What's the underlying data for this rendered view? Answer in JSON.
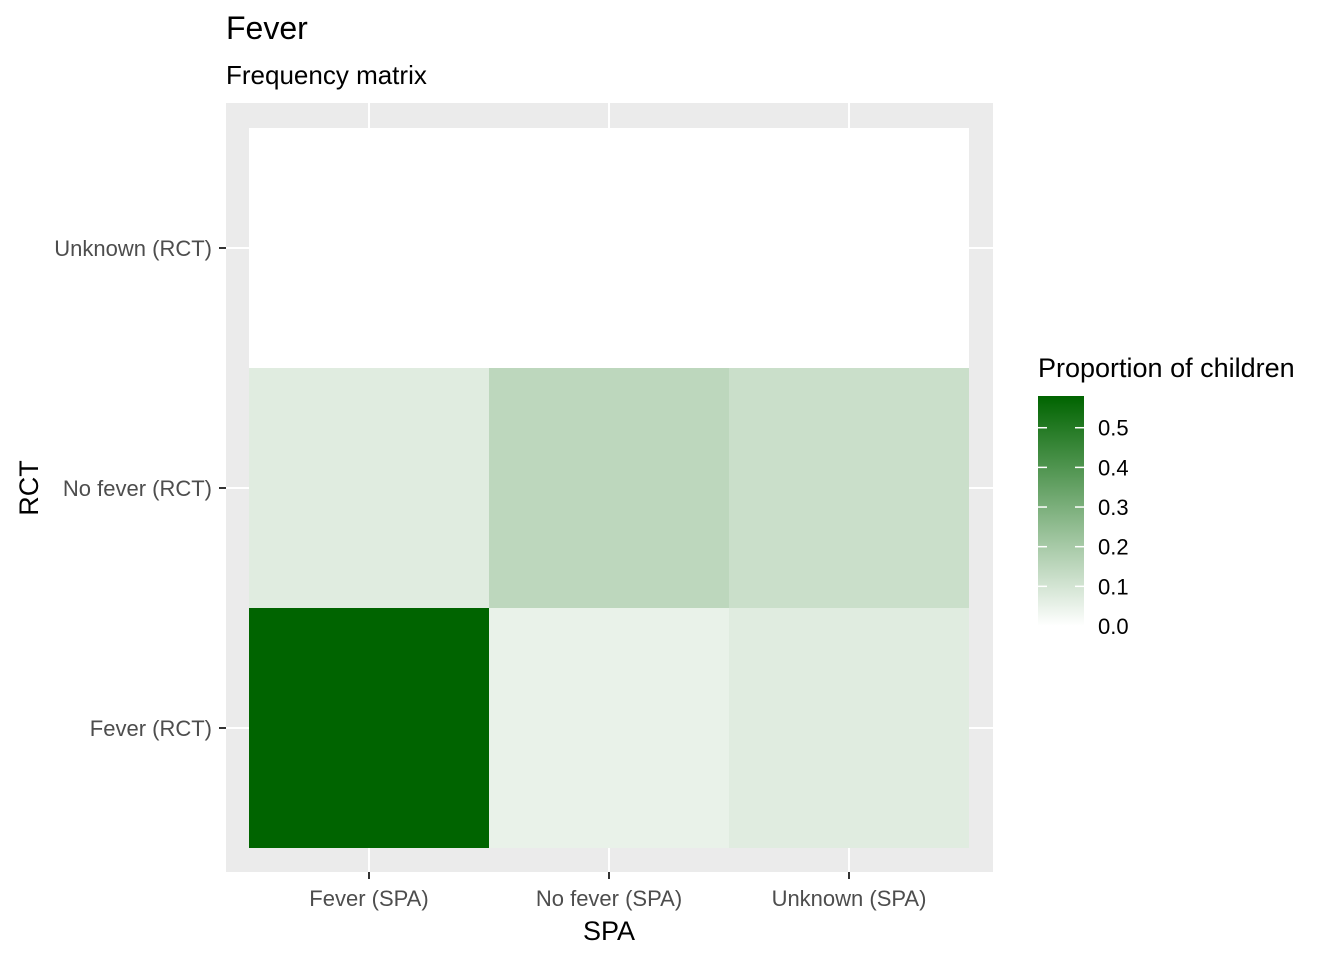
{
  "chart_data": {
    "type": "heatmap",
    "title": "Fever",
    "subtitle": "Frequency matrix",
    "xlabel": "SPA",
    "ylabel": "RCT",
    "x_categories": [
      "Fever (SPA)",
      "No fever (SPA)",
      "Unknown (SPA)"
    ],
    "y_categories": [
      "Fever (RCT)",
      "No fever (RCT)",
      "Unknown (RCT)"
    ],
    "values": [
      [
        0.58,
        0.05,
        0.07
      ],
      [
        0.07,
        0.15,
        0.12
      ],
      [
        0.0,
        0.0,
        0.0
      ]
    ],
    "legend": {
      "title": "Proportion of children",
      "ticks": [
        "0.0",
        "0.1",
        "0.2",
        "0.3",
        "0.4",
        "0.5"
      ],
      "range": [
        0,
        0.58
      ],
      "low_color": "#ffffff",
      "high_color": "#006400",
      "position": "right"
    },
    "panel_background": "#ebebeb",
    "grid": true
  }
}
